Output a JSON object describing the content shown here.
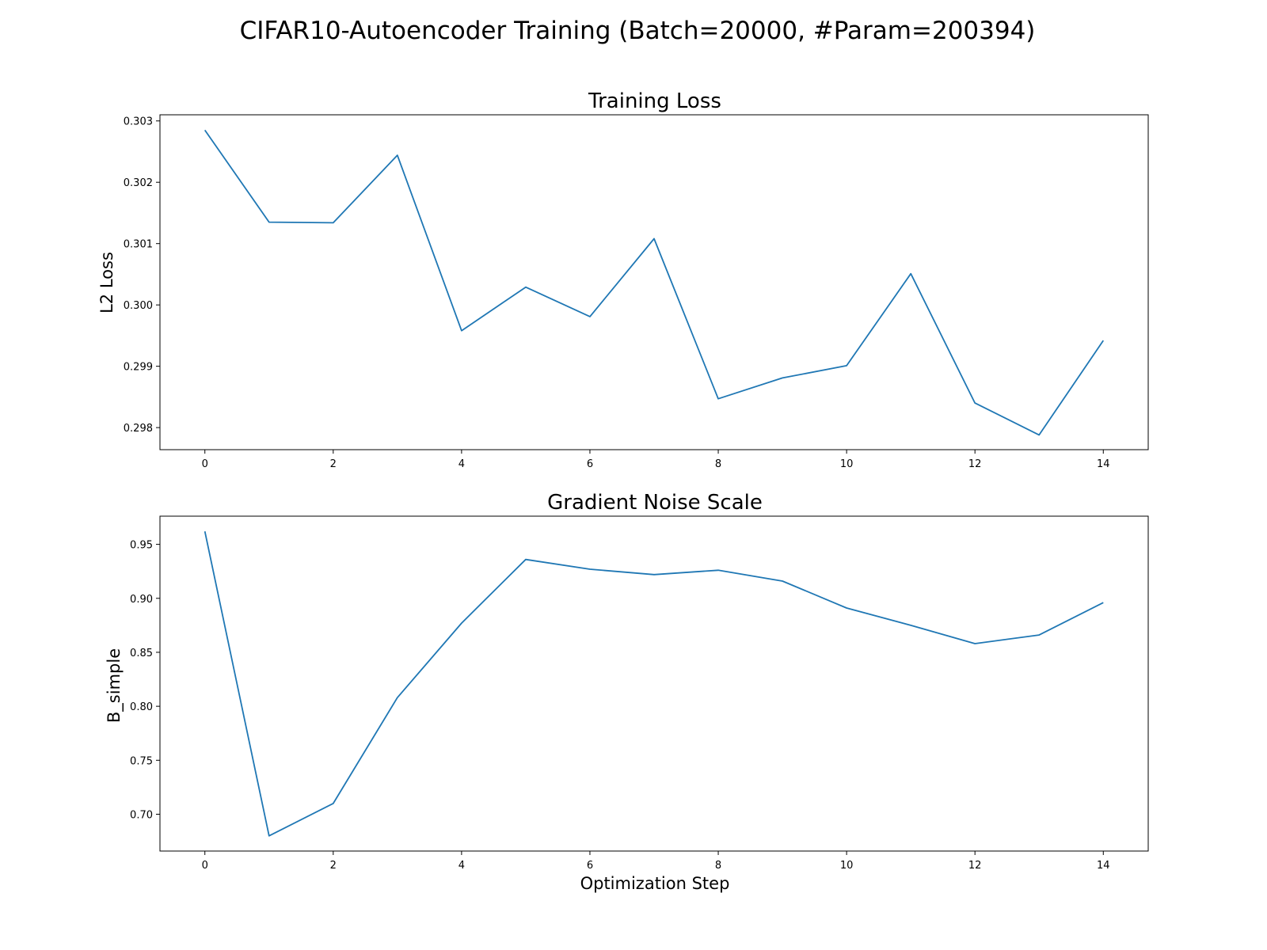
{
  "figure": {
    "title": "CIFAR10-Autoencoder Training (Batch=20000, #Param=200394)"
  },
  "chart_data": [
    {
      "type": "line",
      "title": "Training Loss",
      "xlabel": "",
      "ylabel": "L2 Loss",
      "x": [
        0,
        1,
        2,
        3,
        4,
        5,
        6,
        7,
        8,
        9,
        10,
        11,
        12,
        13,
        14
      ],
      "series": [
        {
          "color": "#1f77b4",
          "values": [
            0.30285,
            0.30135,
            0.30134,
            0.30244,
            0.29958,
            0.30029,
            0.29981,
            0.30108,
            0.29847,
            0.29881,
            0.29901,
            0.30051,
            0.2984,
            0.29788,
            0.29942
          ]
        }
      ],
      "xlim": [
        -0.7,
        14.7
      ],
      "ylim": [
        0.29764,
        0.3031
      ],
      "xticks": [
        0,
        2,
        4,
        6,
        8,
        10,
        12,
        14
      ],
      "xtick_labels": [
        "0",
        "2",
        "4",
        "6",
        "8",
        "10",
        "12",
        "14"
      ],
      "yticks": [
        0.298,
        0.299,
        0.3,
        0.301,
        0.302,
        0.303
      ],
      "ytick_labels": [
        "0.298",
        "0.299",
        "0.300",
        "0.301",
        "0.302",
        "0.303"
      ],
      "grid": false,
      "legend": "none"
    },
    {
      "type": "line",
      "title": "Gradient Noise Scale",
      "xlabel": "Optimization Step",
      "ylabel": "B_simple",
      "x": [
        0,
        1,
        2,
        3,
        4,
        5,
        6,
        7,
        8,
        9,
        10,
        11,
        12,
        13,
        14
      ],
      "series": [
        {
          "color": "#1f77b4",
          "values": [
            0.962,
            0.68,
            0.71,
            0.808,
            0.877,
            0.936,
            0.927,
            0.922,
            0.926,
            0.916,
            0.891,
            0.875,
            0.858,
            0.866,
            0.896
          ]
        }
      ],
      "xlim": [
        -0.7,
        14.7
      ],
      "ylim": [
        0.6659,
        0.9761
      ],
      "xticks": [
        0,
        2,
        4,
        6,
        8,
        10,
        12,
        14
      ],
      "xtick_labels": [
        "0",
        "2",
        "4",
        "6",
        "8",
        "10",
        "12",
        "14"
      ],
      "yticks": [
        0.7,
        0.75,
        0.8,
        0.85,
        0.9,
        0.95
      ],
      "ytick_labels": [
        "0.70",
        "0.75",
        "0.80",
        "0.85",
        "0.90",
        "0.95"
      ],
      "grid": false,
      "legend": "none"
    }
  ]
}
